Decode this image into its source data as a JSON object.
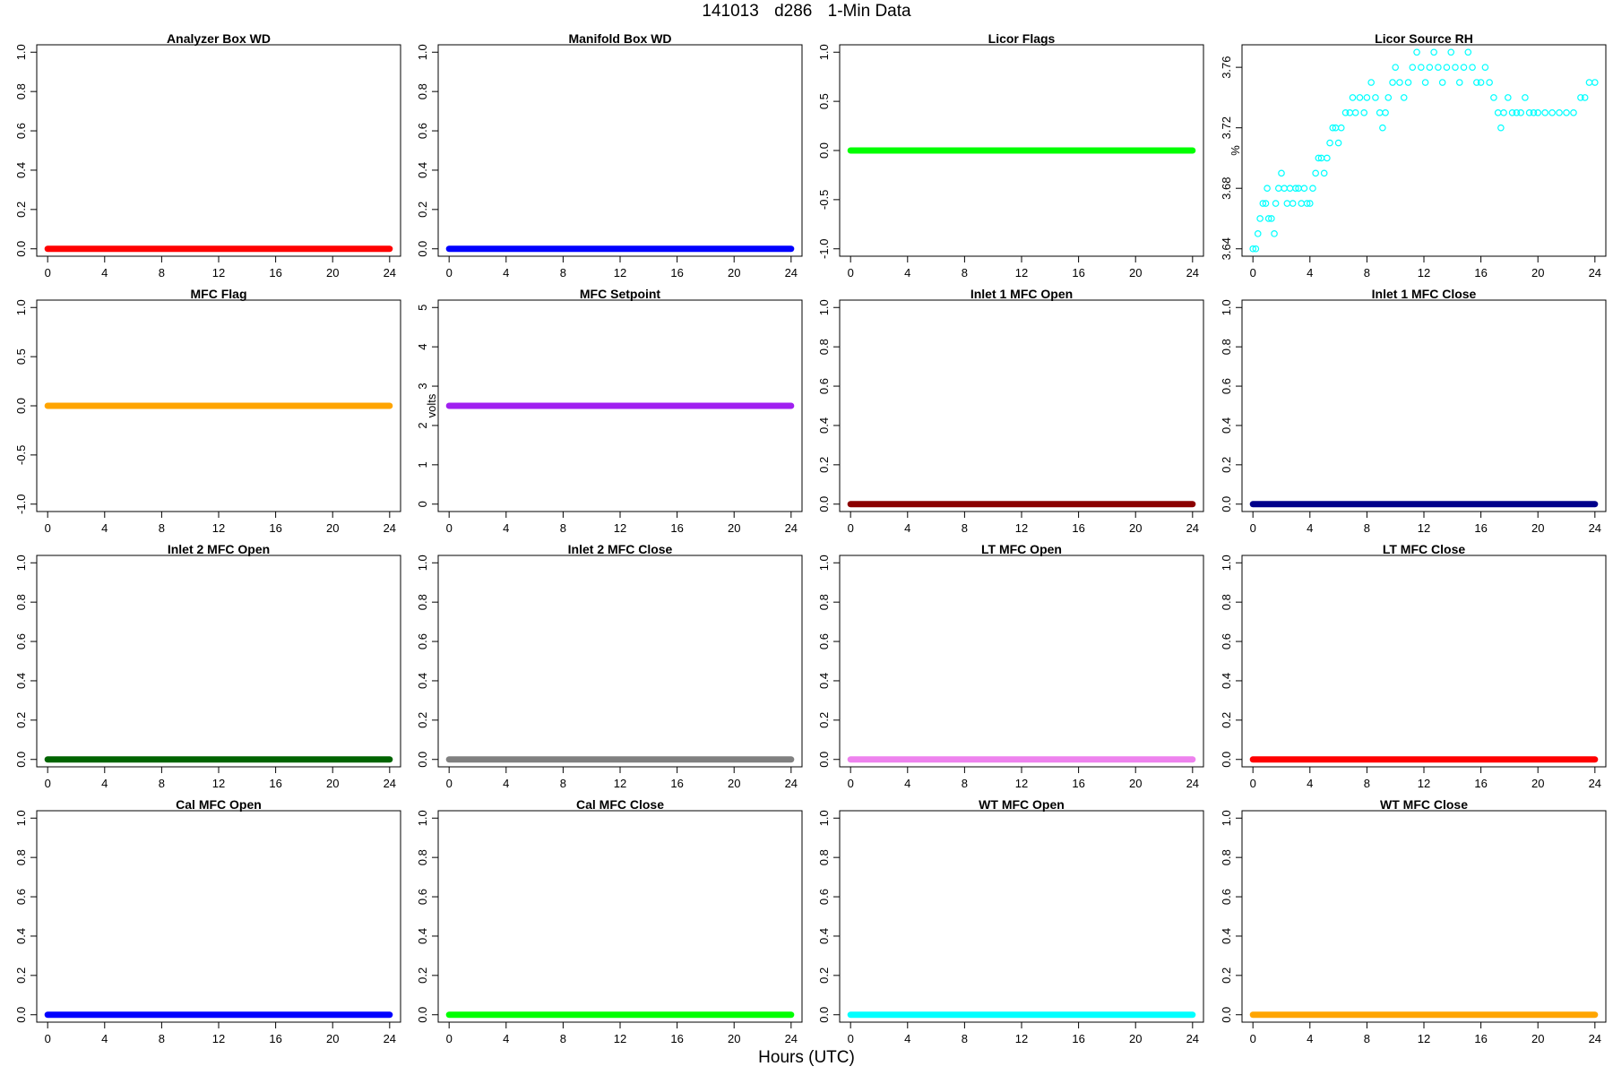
{
  "figure": {
    "title_parts": [
      "141013",
      "d286",
      "1-Min Data"
    ],
    "xlabel": "Hours (UTC)"
  },
  "chart_data": [
    {
      "type": "scatter",
      "title": "Analyzer Box WD",
      "ylabel": "",
      "color": "#ff0000",
      "xlim": [
        0,
        24
      ],
      "ylim": [
        0,
        1
      ],
      "x_ticks": [
        "0",
        "4",
        "8",
        "12",
        "16",
        "20",
        "24"
      ],
      "y_ticks": [
        "0.0",
        "0.2",
        "0.4",
        "0.6",
        "0.8",
        "1.0"
      ],
      "series": [
        {
          "x": [
            0,
            24
          ],
          "y": [
            0,
            0
          ],
          "style": "constant"
        }
      ]
    },
    {
      "type": "scatter",
      "title": "Manifold Box WD",
      "ylabel": "",
      "color": "#0000ff",
      "xlim": [
        0,
        24
      ],
      "ylim": [
        0,
        1
      ],
      "x_ticks": [
        "0",
        "4",
        "8",
        "12",
        "16",
        "20",
        "24"
      ],
      "y_ticks": [
        "0.0",
        "0.2",
        "0.4",
        "0.6",
        "0.8",
        "1.0"
      ],
      "series": [
        {
          "x": [
            0,
            24
          ],
          "y": [
            0,
            0
          ],
          "style": "constant"
        }
      ]
    },
    {
      "type": "scatter",
      "title": "Licor Flags",
      "ylabel": "",
      "color": "#00ff00",
      "xlim": [
        0,
        24
      ],
      "ylim": [
        -1,
        1
      ],
      "x_ticks": [
        "0",
        "4",
        "8",
        "12",
        "16",
        "20",
        "24"
      ],
      "y_ticks": [
        "-1.0",
        "-0.5",
        "0.0",
        "0.5",
        "1.0"
      ],
      "series": [
        {
          "x": [
            0,
            24
          ],
          "y": [
            0,
            0
          ],
          "style": "constant"
        }
      ]
    },
    {
      "type": "scatter",
      "title": "Licor Source RH",
      "ylabel": "%",
      "color": "#00ffff",
      "xlim": [
        0,
        24
      ],
      "ylim": [
        3.64,
        3.77
      ],
      "x_ticks": [
        "0",
        "4",
        "8",
        "12",
        "16",
        "20",
        "24"
      ],
      "y_ticks": [
        "3.64",
        "3.68",
        "3.72",
        "3.76"
      ],
      "series": [
        {
          "style": "points",
          "points": [
            [
              0.0,
              3.64
            ],
            [
              0.2,
              3.64
            ],
            [
              0.35,
              3.65
            ],
            [
              0.5,
              3.66
            ],
            [
              0.7,
              3.67
            ],
            [
              0.9,
              3.67
            ],
            [
              1.0,
              3.68
            ],
            [
              1.1,
              3.66
            ],
            [
              1.3,
              3.66
            ],
            [
              1.5,
              3.65
            ],
            [
              1.6,
              3.67
            ],
            [
              1.8,
              3.68
            ],
            [
              2.0,
              3.69
            ],
            [
              2.2,
              3.68
            ],
            [
              2.4,
              3.67
            ],
            [
              2.6,
              3.68
            ],
            [
              2.8,
              3.67
            ],
            [
              3.0,
              3.68
            ],
            [
              3.2,
              3.68
            ],
            [
              3.4,
              3.67
            ],
            [
              3.6,
              3.68
            ],
            [
              3.8,
              3.67
            ],
            [
              4.0,
              3.67
            ],
            [
              4.2,
              3.68
            ],
            [
              4.4,
              3.69
            ],
            [
              4.6,
              3.7
            ],
            [
              4.8,
              3.7
            ],
            [
              5.0,
              3.69
            ],
            [
              5.2,
              3.7
            ],
            [
              5.4,
              3.71
            ],
            [
              5.6,
              3.72
            ],
            [
              5.8,
              3.72
            ],
            [
              6.0,
              3.71
            ],
            [
              6.2,
              3.72
            ],
            [
              6.5,
              3.73
            ],
            [
              6.8,
              3.73
            ],
            [
              7.0,
              3.74
            ],
            [
              7.2,
              3.73
            ],
            [
              7.5,
              3.74
            ],
            [
              7.8,
              3.73
            ],
            [
              8.0,
              3.74
            ],
            [
              8.3,
              3.75
            ],
            [
              8.6,
              3.74
            ],
            [
              8.9,
              3.73
            ],
            [
              9.1,
              3.72
            ],
            [
              9.3,
              3.73
            ],
            [
              9.5,
              3.74
            ],
            [
              9.8,
              3.75
            ],
            [
              10.0,
              3.76
            ],
            [
              10.3,
              3.75
            ],
            [
              10.6,
              3.74
            ],
            [
              10.9,
              3.75
            ],
            [
              11.2,
              3.76
            ],
            [
              11.5,
              3.77
            ],
            [
              11.8,
              3.76
            ],
            [
              12.1,
              3.75
            ],
            [
              12.4,
              3.76
            ],
            [
              12.7,
              3.77
            ],
            [
              13.0,
              3.76
            ],
            [
              13.3,
              3.75
            ],
            [
              13.6,
              3.76
            ],
            [
              13.9,
              3.77
            ],
            [
              14.2,
              3.76
            ],
            [
              14.5,
              3.75
            ],
            [
              14.8,
              3.76
            ],
            [
              15.1,
              3.77
            ],
            [
              15.4,
              3.76
            ],
            [
              15.7,
              3.75
            ],
            [
              16.0,
              3.75
            ],
            [
              16.3,
              3.76
            ],
            [
              16.6,
              3.75
            ],
            [
              16.9,
              3.74
            ],
            [
              17.2,
              3.73
            ],
            [
              17.4,
              3.72
            ],
            [
              17.6,
              3.73
            ],
            [
              17.9,
              3.74
            ],
            [
              18.2,
              3.73
            ],
            [
              18.5,
              3.73
            ],
            [
              18.8,
              3.73
            ],
            [
              19.1,
              3.74
            ],
            [
              19.4,
              3.73
            ],
            [
              19.7,
              3.73
            ],
            [
              20.0,
              3.73
            ],
            [
              20.5,
              3.73
            ],
            [
              21.0,
              3.73
            ],
            [
              21.5,
              3.73
            ],
            [
              22.0,
              3.73
            ],
            [
              22.5,
              3.73
            ],
            [
              23.0,
              3.74
            ],
            [
              23.3,
              3.74
            ],
            [
              23.6,
              3.75
            ],
            [
              24.0,
              3.75
            ]
          ]
        }
      ]
    },
    {
      "type": "scatter",
      "title": "MFC Flag",
      "ylabel": "",
      "color": "#ffa500",
      "xlim": [
        0,
        24
      ],
      "ylim": [
        -1,
        1
      ],
      "x_ticks": [
        "0",
        "4",
        "8",
        "12",
        "16",
        "20",
        "24"
      ],
      "y_ticks": [
        "-1.0",
        "-0.5",
        "0.0",
        "0.5",
        "1.0"
      ],
      "series": [
        {
          "x": [
            0,
            24
          ],
          "y": [
            0,
            0
          ],
          "style": "constant"
        }
      ]
    },
    {
      "type": "scatter",
      "title": "MFC Setpoint",
      "ylabel": "volts",
      "color": "#a020f0",
      "xlim": [
        0,
        24
      ],
      "ylim": [
        0,
        5
      ],
      "x_ticks": [
        "0",
        "4",
        "8",
        "12",
        "16",
        "20",
        "24"
      ],
      "y_ticks": [
        "0",
        "1",
        "2",
        "3",
        "4",
        "5"
      ],
      "series": [
        {
          "x": [
            0,
            24
          ],
          "y": [
            2.5,
            2.5
          ],
          "style": "constant"
        }
      ]
    },
    {
      "type": "scatter",
      "title": "Inlet 1 MFC Open",
      "ylabel": "",
      "color": "#8b0000",
      "xlim": [
        0,
        24
      ],
      "ylim": [
        0,
        1
      ],
      "x_ticks": [
        "0",
        "4",
        "8",
        "12",
        "16",
        "20",
        "24"
      ],
      "y_ticks": [
        "0.0",
        "0.2",
        "0.4",
        "0.6",
        "0.8",
        "1.0"
      ],
      "series": [
        {
          "x": [
            0,
            24
          ],
          "y": [
            0,
            0
          ],
          "style": "constant"
        }
      ]
    },
    {
      "type": "scatter",
      "title": "Inlet 1 MFC Close",
      "ylabel": "",
      "color": "#00008b",
      "xlim": [
        0,
        24
      ],
      "ylim": [
        0,
        1
      ],
      "x_ticks": [
        "0",
        "4",
        "8",
        "12",
        "16",
        "20",
        "24"
      ],
      "y_ticks": [
        "0.0",
        "0.2",
        "0.4",
        "0.6",
        "0.8",
        "1.0"
      ],
      "series": [
        {
          "x": [
            0,
            24
          ],
          "y": [
            0,
            0
          ],
          "style": "constant"
        }
      ]
    },
    {
      "type": "scatter",
      "title": "Inlet 2 MFC Open",
      "ylabel": "",
      "color": "#006400",
      "xlim": [
        0,
        24
      ],
      "ylim": [
        0,
        1
      ],
      "x_ticks": [
        "0",
        "4",
        "8",
        "12",
        "16",
        "20",
        "24"
      ],
      "y_ticks": [
        "0.0",
        "0.2",
        "0.4",
        "0.6",
        "0.8",
        "1.0"
      ],
      "series": [
        {
          "x": [
            0,
            24
          ],
          "y": [
            0,
            0
          ],
          "style": "constant"
        }
      ]
    },
    {
      "type": "scatter",
      "title": "Inlet 2 MFC Close",
      "ylabel": "",
      "color": "#808080",
      "xlim": [
        0,
        24
      ],
      "ylim": [
        0,
        1
      ],
      "x_ticks": [
        "0",
        "4",
        "8",
        "12",
        "16",
        "20",
        "24"
      ],
      "y_ticks": [
        "0.0",
        "0.2",
        "0.4",
        "0.6",
        "0.8",
        "1.0"
      ],
      "series": [
        {
          "x": [
            0,
            24
          ],
          "y": [
            0,
            0
          ],
          "style": "constant"
        }
      ]
    },
    {
      "type": "scatter",
      "title": "LT MFC Open",
      "ylabel": "",
      "color": "#ee82ee",
      "xlim": [
        0,
        24
      ],
      "ylim": [
        0,
        1
      ],
      "x_ticks": [
        "0",
        "4",
        "8",
        "12",
        "16",
        "20",
        "24"
      ],
      "y_ticks": [
        "0.0",
        "0.2",
        "0.4",
        "0.6",
        "0.8",
        "1.0"
      ],
      "series": [
        {
          "x": [
            0,
            24
          ],
          "y": [
            0,
            0
          ],
          "style": "constant"
        }
      ]
    },
    {
      "type": "scatter",
      "title": "LT MFC Close",
      "ylabel": "",
      "color": "#ff0000",
      "xlim": [
        0,
        24
      ],
      "ylim": [
        0,
        1
      ],
      "x_ticks": [
        "0",
        "4",
        "8",
        "12",
        "16",
        "20",
        "24"
      ],
      "y_ticks": [
        "0.0",
        "0.2",
        "0.4",
        "0.6",
        "0.8",
        "1.0"
      ],
      "series": [
        {
          "x": [
            0,
            24
          ],
          "y": [
            0,
            0
          ],
          "style": "constant"
        }
      ]
    },
    {
      "type": "scatter",
      "title": "Cal MFC Open",
      "ylabel": "",
      "color": "#0000ff",
      "xlim": [
        0,
        24
      ],
      "ylim": [
        0,
        1
      ],
      "x_ticks": [
        "0",
        "4",
        "8",
        "12",
        "16",
        "20",
        "24"
      ],
      "y_ticks": [
        "0.0",
        "0.2",
        "0.4",
        "0.6",
        "0.8",
        "1.0"
      ],
      "series": [
        {
          "x": [
            0,
            24
          ],
          "y": [
            0,
            0
          ],
          "style": "constant"
        }
      ]
    },
    {
      "type": "scatter",
      "title": "Cal MFC Close",
      "ylabel": "",
      "color": "#00ff00",
      "xlim": [
        0,
        24
      ],
      "ylim": [
        0,
        1
      ],
      "x_ticks": [
        "0",
        "4",
        "8",
        "12",
        "16",
        "20",
        "24"
      ],
      "y_ticks": [
        "0.0",
        "0.2",
        "0.4",
        "0.6",
        "0.8",
        "1.0"
      ],
      "series": [
        {
          "x": [
            0,
            24
          ],
          "y": [
            0,
            0
          ],
          "style": "constant"
        }
      ]
    },
    {
      "type": "scatter",
      "title": "WT MFC Open",
      "ylabel": "",
      "color": "#00ffff",
      "xlim": [
        0,
        24
      ],
      "ylim": [
        0,
        1
      ],
      "x_ticks": [
        "0",
        "4",
        "8",
        "12",
        "16",
        "20",
        "24"
      ],
      "y_ticks": [
        "0.0",
        "0.2",
        "0.4",
        "0.6",
        "0.8",
        "1.0"
      ],
      "series": [
        {
          "x": [
            0,
            24
          ],
          "y": [
            0,
            0
          ],
          "style": "constant"
        }
      ]
    },
    {
      "type": "scatter",
      "title": "WT MFC Close",
      "ylabel": "",
      "color": "#ffa500",
      "xlim": [
        0,
        24
      ],
      "ylim": [
        0,
        1
      ],
      "x_ticks": [
        "0",
        "4",
        "8",
        "12",
        "16",
        "20",
        "24"
      ],
      "y_ticks": [
        "0.0",
        "0.2",
        "0.4",
        "0.6",
        "0.8",
        "1.0"
      ],
      "series": [
        {
          "x": [
            0,
            24
          ],
          "y": [
            0,
            0
          ],
          "style": "constant"
        }
      ]
    }
  ]
}
